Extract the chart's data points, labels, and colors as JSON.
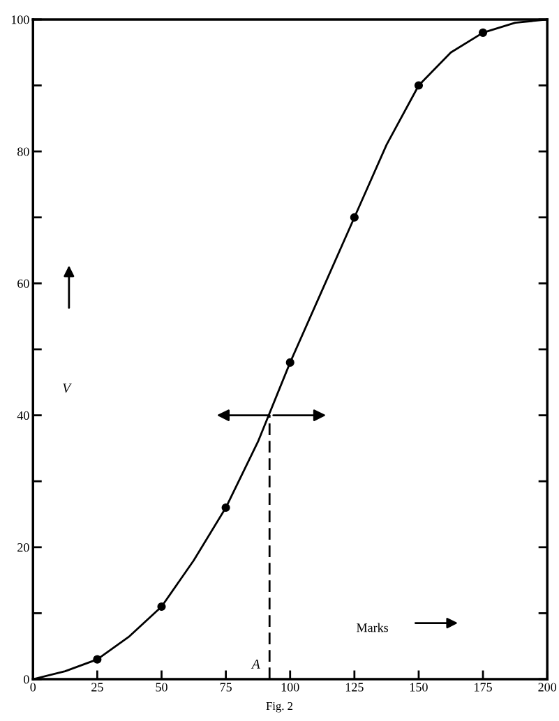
{
  "chart_data": {
    "type": "line",
    "xlabel": "Marks",
    "ylabel": "V",
    "xlim": [
      0,
      200
    ],
    "ylim": [
      0,
      100
    ],
    "xticks": [
      0,
      25,
      50,
      75,
      100,
      125,
      150,
      175,
      200
    ],
    "yticks": [
      0,
      {
        "value": 10,
        "label": null
      },
      20,
      {
        "value": 30,
        "label": null
      },
      40,
      {
        "value": 50,
        "label": null
      },
      60,
      {
        "value": 70,
        "label": null
      },
      80,
      {
        "value": 90,
        "label": null
      },
      100
    ],
    "series": [
      {
        "color": "#000000",
        "marker": "none",
        "line_style": "solid",
        "x": [
          0,
          12.5,
          25,
          37.5,
          50,
          62.5,
          75,
          87.5,
          100,
          112.5,
          125,
          137.5,
          150,
          162.5,
          175,
          187.5,
          200
        ],
        "values": [
          0,
          1.2,
          3,
          6.5,
          11,
          18,
          26,
          36,
          48,
          59,
          70,
          81,
          90,
          95,
          98,
          99.5,
          100
        ]
      },
      {
        "type": "scatter",
        "color": "#000000",
        "marker": "circle",
        "x": [
          25,
          50,
          75,
          100,
          125,
          150,
          175
        ],
        "values": [
          3,
          11,
          26,
          48,
          70,
          90,
          98
        ]
      },
      {
        "color": "#000000",
        "marker": "none",
        "line_style": "dashed",
        "x": [
          92,
          92
        ],
        "values": [
          0,
          40
        ]
      }
    ],
    "annotations": [
      {
        "text": "A",
        "x": 92,
        "y": 0
      },
      "Fig. 2"
    ],
    "grid": false,
    "legend": false
  }
}
